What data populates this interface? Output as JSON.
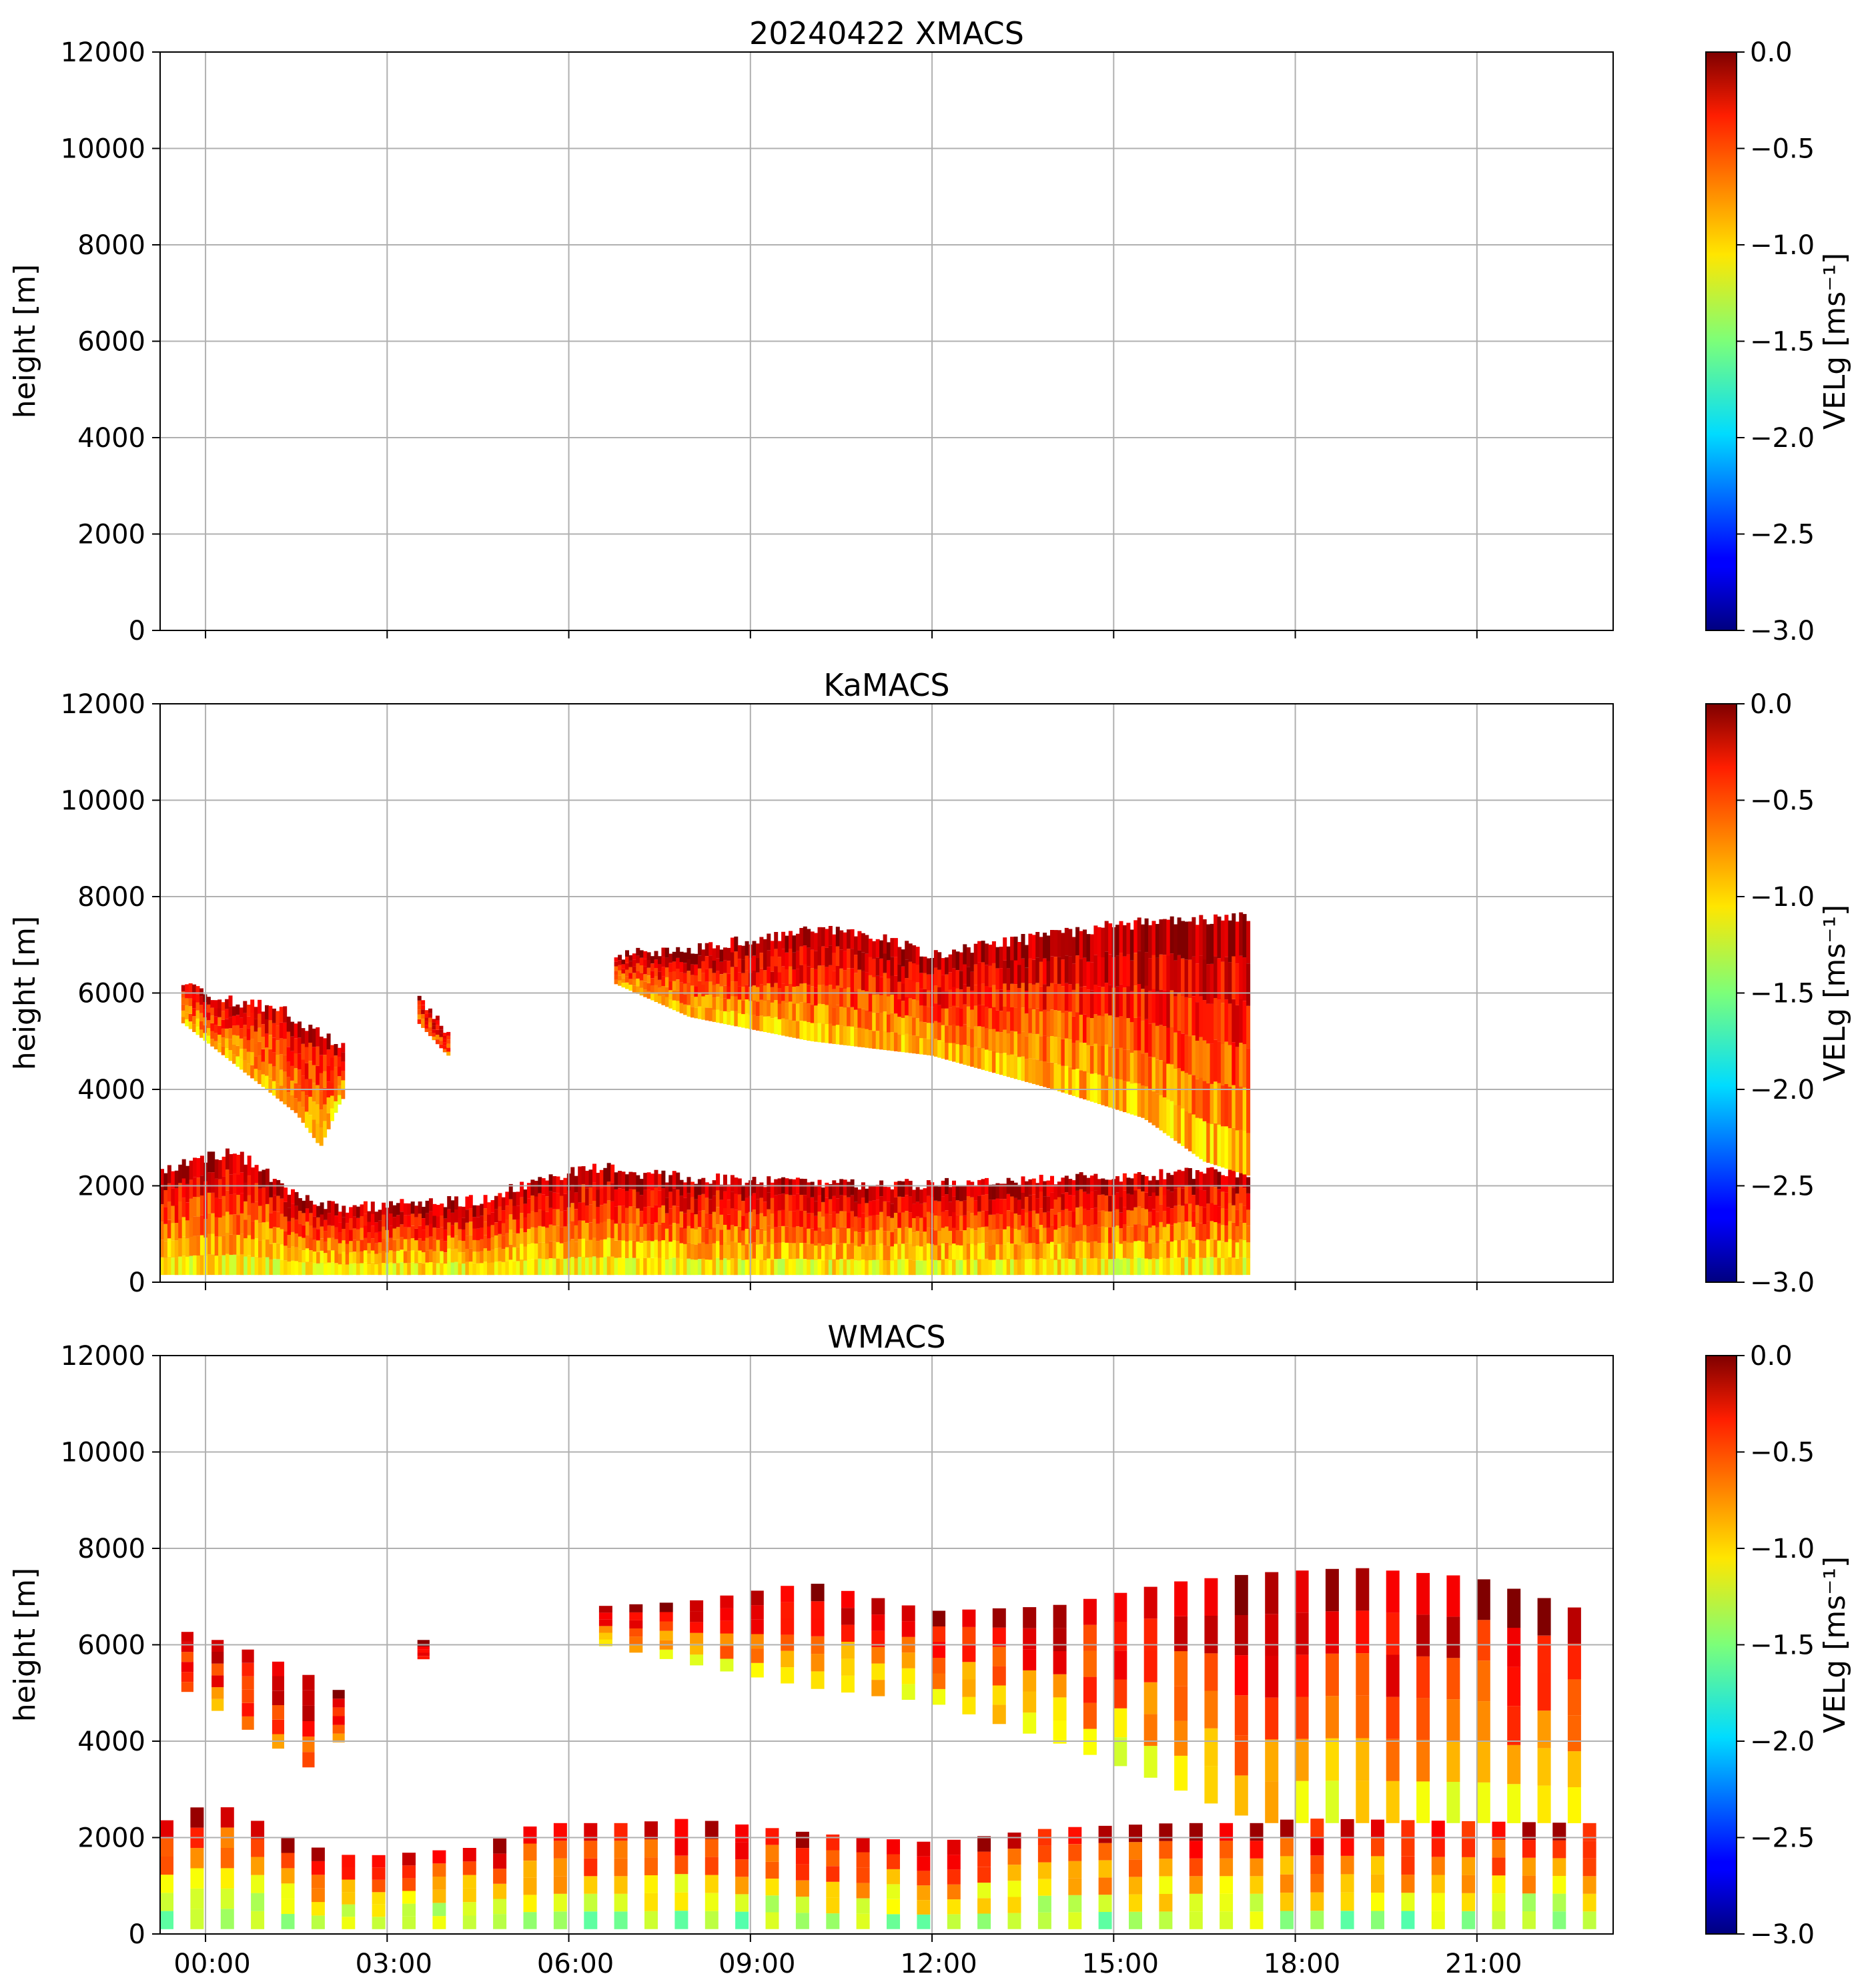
{
  "chart_data": [
    {
      "type": "heatmap",
      "title": "20240422 XMACS",
      "ylabel": "height [m]",
      "ylim": [
        0,
        12000
      ],
      "xlim": [
        -0.75,
        23.25
      ],
      "x_unit": "hour of day (UTC)",
      "grid": true,
      "colorscale": "jet",
      "colorbar": {
        "label": "VELg [ms⁻¹]",
        "min": -3.0,
        "max": 0.0,
        "ticks": [
          0.0,
          -0.5,
          -1.0,
          -1.5,
          -2.0,
          -2.5,
          -3.0
        ]
      },
      "yticks": [
        0,
        2000,
        4000,
        6000,
        8000,
        10000,
        12000
      ],
      "xticks": [
        0,
        3,
        6,
        9,
        12,
        15,
        18,
        21
      ],
      "xtick_labels": [],
      "observations": []
    },
    {
      "type": "heatmap",
      "title": "KaMACS",
      "ylabel": "height [m]",
      "ylim": [
        0,
        12000
      ],
      "xlim": [
        -0.75,
        23.25
      ],
      "x_unit": "hour of day (UTC)",
      "grid": true,
      "colorscale": "jet",
      "colorbar": {
        "label": "VELg [ms⁻¹]",
        "min": -3.0,
        "max": 0.0,
        "ticks": [
          0.0,
          -0.5,
          -1.0,
          -1.5,
          -2.0,
          -2.5,
          -3.0
        ]
      },
      "yticks": [
        0,
        2000,
        4000,
        6000,
        8000,
        10000,
        12000
      ],
      "xticks": [
        0,
        3,
        6,
        9,
        12,
        15,
        18,
        21
      ],
      "xtick_labels": [],
      "observations": [
        {
          "kind": "band",
          "name": "low cloud layer",
          "x_start": -0.75,
          "x_end": 17.25,
          "base": 150,
          "top": [
            [
              -0.75,
              2300
            ],
            [
              0.0,
              2600
            ],
            [
              0.5,
              2700
            ],
            [
              1.5,
              1800
            ],
            [
              2.25,
              1550
            ],
            [
              4.5,
              1700
            ],
            [
              5.5,
              2100
            ],
            [
              6.5,
              2400
            ],
            [
              7.5,
              2200
            ],
            [
              9.0,
              2100
            ],
            [
              11.0,
              2000
            ],
            [
              13.0,
              2100
            ],
            [
              15.0,
              2200
            ],
            [
              17.25,
              2300
            ]
          ],
          "value_low": -1.2,
          "value_high": -0.1
        },
        {
          "kind": "band",
          "name": "mid cloud early",
          "x_start": -0.4,
          "x_end": 2.25,
          "base": [
            [
              -0.4,
              5400
            ],
            [
              0.5,
              4500
            ],
            [
              1.5,
              3500
            ],
            [
              1.9,
              2800
            ],
            [
              2.25,
              3800
            ]
          ],
          "top": [
            [
              -0.4,
              6200
            ],
            [
              0.5,
              5800
            ],
            [
              1.2,
              5700
            ],
            [
              1.8,
              5200
            ],
            [
              2.25,
              4900
            ]
          ],
          "value_low": -1.0,
          "value_high": -0.2
        },
        {
          "kind": "band",
          "name": "mid cloud small",
          "x_start": 3.5,
          "x_end": 4.0,
          "base": [
            [
              3.5,
              5400
            ],
            [
              4.0,
              4700
            ]
          ],
          "top": [
            [
              3.5,
              6000
            ],
            [
              4.0,
              5200
            ]
          ],
          "value_low": -0.7,
          "value_high": -0.2
        },
        {
          "kind": "band",
          "name": "upper cloud layer",
          "x_start": 6.75,
          "x_end": 17.25,
          "base": [
            [
              6.75,
              6200
            ],
            [
              8.0,
              5500
            ],
            [
              10.0,
              5000
            ],
            [
              12.0,
              4700
            ],
            [
              14.0,
              4000
            ],
            [
              15.5,
              3400
            ],
            [
              16.5,
              2500
            ],
            [
              17.25,
              2200
            ]
          ],
          "top": [
            [
              6.75,
              6800
            ],
            [
              8.0,
              6900
            ],
            [
              9.0,
              7100
            ],
            [
              10.0,
              7300
            ],
            [
              11.0,
              7200
            ],
            [
              12.0,
              6800
            ],
            [
              13.0,
              7000
            ],
            [
              14.0,
              7200
            ],
            [
              15.0,
              7400
            ],
            [
              16.0,
              7500
            ],
            [
              17.25,
              7600
            ]
          ],
          "value_low": -1.0,
          "value_high": -0.05
        }
      ]
    },
    {
      "type": "heatmap",
      "title": "WMACS",
      "ylabel": "height [m]",
      "ylim": [
        0,
        12000
      ],
      "xlim": [
        -0.75,
        23.25
      ],
      "x_unit": "hour of day (UTC)",
      "grid": true,
      "colorscale": "jet",
      "colorbar": {
        "label": "VELg [ms⁻¹]",
        "min": -3.0,
        "max": 0.0,
        "ticks": [
          0.0,
          -0.5,
          -1.0,
          -1.5,
          -2.0,
          -2.5,
          -3.0
        ]
      },
      "yticks": [
        0,
        2000,
        4000,
        6000,
        8000,
        10000,
        12000
      ],
      "xticks": [
        0,
        3,
        6,
        9,
        12,
        15,
        18,
        21
      ],
      "xtick_labels": [
        "00:00",
        "03:00",
        "06:00",
        "09:00",
        "12:00",
        "15:00",
        "18:00",
        "21:00"
      ],
      "observations": [
        {
          "kind": "stripes",
          "name": "low cloud samples",
          "x_start": -0.75,
          "x_end": 22.8,
          "period": 0.5,
          "width": 0.22,
          "base": 100,
          "top": [
            [
              -0.75,
              2300
            ],
            [
              0.0,
              2700
            ],
            [
              0.5,
              2600
            ],
            [
              1.5,
              1900
            ],
            [
              2.5,
              1600
            ],
            [
              4.5,
              1800
            ],
            [
              5.5,
              2300
            ],
            [
              7.0,
              2300
            ],
            [
              8.0,
              2400
            ],
            [
              10.0,
              2100
            ],
            [
              12.0,
              1900
            ],
            [
              14.0,
              2200
            ],
            [
              16.0,
              2300
            ],
            [
              17.5,
              2300
            ],
            [
              18.0,
              2400
            ],
            [
              22.8,
              2300
            ]
          ],
          "value_low": -1.5,
          "value_high": -0.2
        },
        {
          "kind": "stripes",
          "name": "mid cloud early samples",
          "x_start": -0.4,
          "x_end": 2.3,
          "period": 0.5,
          "width": 0.2,
          "base": [
            [
              -0.4,
              5100
            ],
            [
              1.0,
              4000
            ],
            [
              1.9,
              3300
            ],
            [
              2.3,
              4200
            ]
          ],
          "top": [
            [
              -0.4,
              6300
            ],
            [
              0.5,
              6000
            ],
            [
              1.5,
              5500
            ],
            [
              2.3,
              5000
            ]
          ],
          "value_low": -0.8,
          "value_high": -0.1
        },
        {
          "kind": "stripes",
          "name": "mid cloud small samples",
          "x_start": 3.5,
          "x_end": 3.75,
          "period": 0.5,
          "width": 0.2,
          "base": 5700,
          "top": 6100,
          "value_low": -0.4,
          "value_high": -0.1
        },
        {
          "kind": "stripes",
          "name": "upper cloud samples",
          "x_start": 6.5,
          "x_end": 22.8,
          "period": 0.5,
          "width": 0.22,
          "base": [
            [
              6.5,
              6000
            ],
            [
              8.0,
              5600
            ],
            [
              10.0,
              5100
            ],
            [
              12.0,
              4800
            ],
            [
              14.0,
              4000
            ],
            [
              15.5,
              3300
            ],
            [
              17.0,
              2500
            ],
            [
              17.5,
              2300
            ],
            [
              22.8,
              2300
            ]
          ],
          "top": [
            [
              6.5,
              6800
            ],
            [
              8.0,
              6900
            ],
            [
              10.0,
              7300
            ],
            [
              11.0,
              7000
            ],
            [
              12.0,
              6700
            ],
            [
              14.0,
              6800
            ],
            [
              16.0,
              7300
            ],
            [
              17.5,
              7500
            ],
            [
              19.0,
              7600
            ],
            [
              21.0,
              7400
            ],
            [
              22.8,
              6700
            ]
          ],
          "value_low": -1.1,
          "value_high": -0.1
        }
      ]
    }
  ]
}
